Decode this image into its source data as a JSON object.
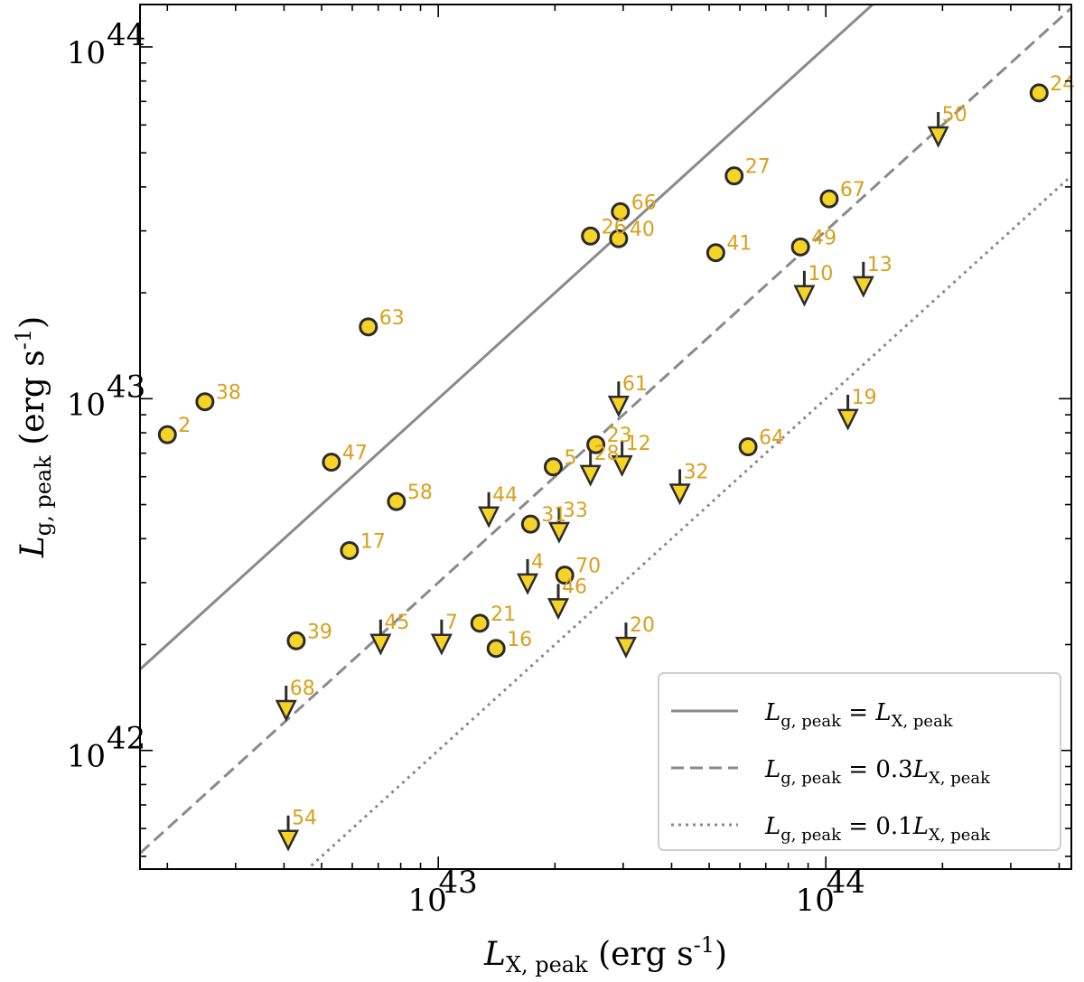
{
  "chart_data": {
    "type": "scatter",
    "xlabel": "L_{X, peak} (erg s^{-1})",
    "ylabel": "L_{g, peak} (erg s^{-1})",
    "xscale": "log",
    "yscale": "log",
    "xlim": [
      1.7e+42,
      4.3e+44
    ],
    "ylim": [
      4.6e+41,
      1.32e+44
    ],
    "x_ticks": [
      {
        "value": 1e+43,
        "label": "10",
        "exp": "43"
      },
      {
        "value": 1e+44,
        "label": "10",
        "exp": "44"
      }
    ],
    "y_ticks": [
      {
        "value": 1e+42,
        "label": "10",
        "exp": "42"
      },
      {
        "value": 1e+43,
        "label": "10",
        "exp": "43"
      },
      {
        "value": 1e+44,
        "label": "10",
        "exp": "44"
      }
    ],
    "detections": [
      {
        "id": "2",
        "x": 2e+42,
        "y": 7.9e+42
      },
      {
        "id": "38",
        "x": 2.5e+42,
        "y": 9.8e+42
      },
      {
        "id": "63",
        "x": 6.6e+42,
        "y": 1.6e+43
      },
      {
        "id": "47",
        "x": 5.3e+42,
        "y": 6.6e+42
      },
      {
        "id": "58",
        "x": 7.8e+42,
        "y": 5.1e+42
      },
      {
        "id": "17",
        "x": 5.9e+42,
        "y": 3.7e+42
      },
      {
        "id": "39",
        "x": 4.3e+42,
        "y": 2.05e+42
      },
      {
        "id": "21",
        "x": 1.28e+43,
        "y": 2.3e+42
      },
      {
        "id": "16",
        "x": 1.41e+43,
        "y": 1.95e+42
      },
      {
        "id": "31",
        "x": 1.73e+43,
        "y": 4.4e+42
      },
      {
        "id": "5",
        "x": 1.98e+43,
        "y": 6.4e+42
      },
      {
        "id": "70",
        "x": 2.12e+43,
        "y": 3.15e+42
      },
      {
        "id": "23",
        "x": 2.55e+43,
        "y": 7.4e+42
      },
      {
        "id": "26",
        "x": 2.47e+43,
        "y": 2.9e+43
      },
      {
        "id": "40",
        "x": 2.92e+43,
        "y": 2.85e+43
      },
      {
        "id": "66",
        "x": 2.95e+43,
        "y": 3.4e+43
      },
      {
        "id": "41",
        "x": 5.2e+43,
        "y": 2.6e+43
      },
      {
        "id": "27",
        "x": 5.8e+43,
        "y": 4.3e+43
      },
      {
        "id": "67",
        "x": 1.02e+44,
        "y": 3.7e+43
      },
      {
        "id": "49",
        "x": 8.6e+43,
        "y": 2.7e+43
      },
      {
        "id": "64",
        "x": 6.3e+43,
        "y": 7.3e+42
      },
      {
        "id": "24",
        "x": 3.55e+44,
        "y": 7.4e+43
      }
    ],
    "upper_limits": [
      {
        "id": "50",
        "x": 1.95e+44,
        "y": 5.6e+43
      },
      {
        "id": "10",
        "x": 8.8e+43,
        "y": 1.98e+43
      },
      {
        "id": "13",
        "x": 1.25e+44,
        "y": 2.1e+43
      },
      {
        "id": "61",
        "x": 2.92e+43,
        "y": 9.6e+42
      },
      {
        "id": "19",
        "x": 1.14e+44,
        "y": 8.8e+42
      },
      {
        "id": "28",
        "x": 2.47e+43,
        "y": 6.1e+42
      },
      {
        "id": "12",
        "x": 2.98e+43,
        "y": 6.5e+42
      },
      {
        "id": "32",
        "x": 4.2e+43,
        "y": 5.4e+42
      },
      {
        "id": "44",
        "x": 1.35e+43,
        "y": 4.65e+42
      },
      {
        "id": "33",
        "x": 2.05e+43,
        "y": 4.2e+42
      },
      {
        "id": "4",
        "x": 1.7e+43,
        "y": 3e+42
      },
      {
        "id": "46",
        "x": 2.04e+43,
        "y": 2.55e+42
      },
      {
        "id": "45",
        "x": 7.1e+42,
        "y": 2.02e+42
      },
      {
        "id": "7",
        "x": 1.02e+43,
        "y": 2.02e+42
      },
      {
        "id": "20",
        "x": 3.05e+43,
        "y": 1.98e+42
      },
      {
        "id": "68",
        "x": 4.05e+42,
        "y": 1.31e+42
      },
      {
        "id": "54",
        "x": 4.1e+42,
        "y": 5.6e+41
      }
    ],
    "lines": [
      {
        "name": "L_{g,peak} = L_{X,peak}",
        "factor": 1.0,
        "style": "solid"
      },
      {
        "name": "L_{g,peak} = 0.3L_{X,peak}",
        "factor": 0.3,
        "style": "dashed"
      },
      {
        "name": "L_{g,peak} = 0.1L_{X,peak}",
        "factor": 0.1,
        "style": "dotted"
      }
    ],
    "legend_position": "bottom-right",
    "colors": {
      "marker_fill": "#f5d327",
      "marker_edge": "#2b2b2b",
      "label": "#d9a01e",
      "line": "#8a8a8a"
    }
  }
}
